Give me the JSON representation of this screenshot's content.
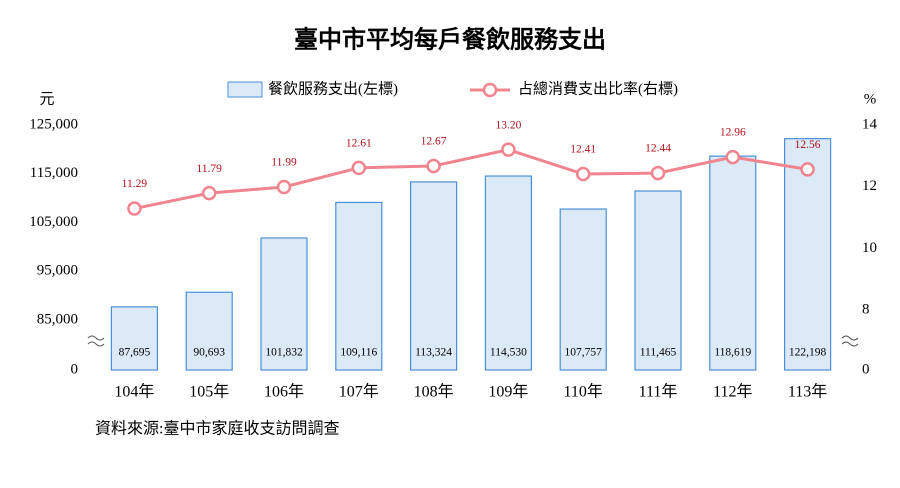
{
  "chart_data": {
    "type": "bar_line",
    "title": "臺中市平均每戶餐飲服務支出",
    "y_unit": "元",
    "y2_unit": "%",
    "source": "資料來源:臺中市家庭收支訪問調查",
    "categories": [
      "104年",
      "105年",
      "106年",
      "107年",
      "108年",
      "109年",
      "110年",
      "111年",
      "112年",
      "113年"
    ],
    "series": [
      {
        "name": "餐飲服務支出(左標)",
        "type": "bar",
        "color": "#dce9f7",
        "edge_color": "#4a90d9",
        "values": [
          87695,
          90693,
          101832,
          109116,
          113324,
          114530,
          107757,
          111465,
          118619,
          122198
        ],
        "value_labels": [
          "87,695",
          "90,693",
          "101,832",
          "109,116",
          "113,324",
          "114,530",
          "107,757",
          "111,465",
          "118,619",
          "122,198"
        ]
      },
      {
        "name": "占總消費支出比率(右標)",
        "type": "line",
        "axis": "y2",
        "color": "#f0848f",
        "label_color": "#b0101c",
        "values": [
          11.29,
          11.79,
          11.99,
          12.61,
          12.67,
          13.2,
          12.41,
          12.44,
          12.96,
          12.56
        ],
        "value_labels": [
          "11.29",
          "11.79",
          "11.99",
          "12.61",
          "12.67",
          "13.20",
          "12.41",
          "12.44",
          "12.96",
          "12.56"
        ]
      }
    ],
    "ylim": [
      0,
      125000
    ],
    "y_break": [
      0,
      85000
    ],
    "yticks": [
      0,
      {
        "value": 85000,
        "label": "85,000"
      },
      {
        "value": 95000,
        "label": "95,000"
      },
      {
        "value": 105000,
        "label": "105,000"
      },
      {
        "value": 115000,
        "label": "115,000"
      },
      {
        "value": 125000,
        "label": "125,000"
      }
    ],
    "y2lim": [
      0,
      14
    ],
    "y2_break": [
      0,
      8
    ],
    "y2ticks": [
      0,
      8,
      10,
      12,
      14
    ]
  }
}
